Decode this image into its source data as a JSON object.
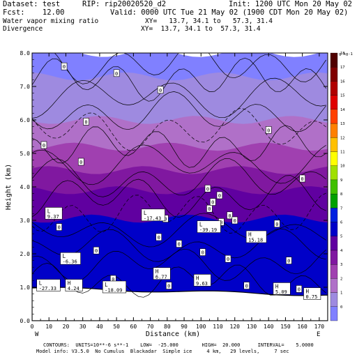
{
  "header": {
    "dataset": "Dataset: test",
    "rip": "RIP: rip20020520_d2",
    "init": "Init: 1200 UTC Mon 20 May 02",
    "fcst": "Fcst:    12.00",
    "valid": "Valid: 0000 UTC Tue 21 May 02 (1900 CDT Mon 20 May 02)",
    "field1": "Water vapor mixing ratio",
    "xy1": "XY=   13.7, 34.1 to   57.3, 31.4",
    "field2": "Divergence",
    "xy2": "XY=  13.7, 34.1 to  57.3, 31.4"
  },
  "footer": {
    "line1": "CONTOURS:  UNITS=10**-6 s**-1    LOW=  -25.000        HIGH=  20.000      INTERVAL=    5.0000",
    "line2": "Model info: V3.5.0  No Cumulus  Blackadar  Simple ice     4 km,   29 levels,     7 sec"
  },
  "chart_data": {
    "type": "heatmap",
    "xlabel": "Distance (km)",
    "ylabel": "Height (km)",
    "xlim": [
      0,
      175
    ],
    "ylim": [
      0,
      8
    ],
    "x_ticks": [
      "0",
      "10",
      "20",
      "30",
      "40",
      "50",
      "60",
      "70",
      "80",
      "90",
      "100",
      "110",
      "120",
      "130",
      "140",
      "150",
      "160",
      "170"
    ],
    "y_ticks": [
      "0.0",
      "1.0",
      "2.0",
      "3.0",
      "4.0",
      "5.0",
      "6.0",
      "7.0",
      "8.0"
    ],
    "end_labels": {
      "left": "W",
      "right": "E"
    },
    "colorbar": {
      "unit": "g kg-1",
      "labels": [
        "0",
        "1",
        "2",
        "3",
        "4",
        "5",
        "6",
        "7",
        "8",
        "9",
        "10",
        "11",
        "12",
        "13",
        "14",
        "15",
        "16",
        "17",
        "18"
      ],
      "colors": [
        "#8080ff",
        "#9e8ae0",
        "#b070c8",
        "#a040b0",
        "#8018a0",
        "#6000a0",
        "#0000c8",
        "#0020e0",
        "#00a000",
        "#40c000",
        "#a0e000",
        "#ffff00",
        "#ffc000",
        "#ff8000",
        "#ff4000",
        "#e00000",
        "#b00000",
        "#800000",
        "#500000"
      ]
    },
    "shading_bands": [
      {
        "color": "#8080ff",
        "y_bottom": 7.3,
        "y_top": 8.0
      },
      {
        "color": "#9e8ae0",
        "y_bottom": 6.0,
        "y_top": 7.3
      },
      {
        "color": "#b070c8",
        "y_bottom": 5.2,
        "y_top": 6.0
      },
      {
        "color": "#a040b0",
        "y_bottom": 4.5,
        "y_top": 5.2
      },
      {
        "color": "#8018a0",
        "y_bottom": 3.9,
        "y_top": 4.5
      },
      {
        "color": "#6000a0",
        "y_bottom": 3.05,
        "y_top": 3.9
      },
      {
        "color": "#0000c8",
        "y_bottom": 0.9,
        "y_top": 3.05
      }
    ],
    "zero_labels": [
      {
        "text": "0",
        "x": 19,
        "y": 7.6
      },
      {
        "text": "0",
        "x": 50,
        "y": 7.4
      },
      {
        "text": "0",
        "x": 76,
        "y": 6.9
      },
      {
        "text": "0",
        "x": 32,
        "y": 5.95
      },
      {
        "text": "0",
        "x": 140,
        "y": 5.7
      },
      {
        "text": "0",
        "x": 7,
        "y": 5.25
      },
      {
        "text": "0",
        "x": 29,
        "y": 4.75
      },
      {
        "text": "0",
        "x": 160,
        "y": 4.25
      },
      {
        "text": "0",
        "x": 104,
        "y": 3.95
      },
      {
        "text": "0",
        "x": 111,
        "y": 3.75
      },
      {
        "text": "0",
        "x": 105,
        "y": 3.35
      },
      {
        "text": "0",
        "x": 112,
        "y": 2.95
      },
      {
        "text": "0",
        "x": 107,
        "y": 3.55
      },
      {
        "text": "0",
        "x": 117,
        "y": 3.15
      },
      {
        "text": "0",
        "x": 79,
        "y": 3.05
      },
      {
        "text": "0",
        "x": 75,
        "y": 2.5
      },
      {
        "text": "0",
        "x": 120,
        "y": 3.0
      },
      {
        "text": "0",
        "x": 145,
        "y": 2.9
      },
      {
        "text": "0",
        "x": 16,
        "y": 2.8
      },
      {
        "text": "0",
        "x": 87,
        "y": 2.3
      },
      {
        "text": "0",
        "x": 101,
        "y": 2.05
      },
      {
        "text": "0",
        "x": 38,
        "y": 2.1
      },
      {
        "text": "0",
        "x": 116,
        "y": 1.85
      },
      {
        "text": "0",
        "x": 152,
        "y": 1.8
      },
      {
        "text": "0",
        "x": 48,
        "y": 1.25
      },
      {
        "text": "0",
        "x": 81,
        "y": 1.05
      },
      {
        "text": "0",
        "x": 127,
        "y": 1.05
      },
      {
        "text": "0",
        "x": 158,
        "y": 0.95
      }
    ],
    "extrema": [
      {
        "kind": "L",
        "value": "9.37",
        "x": 9,
        "y": 3.2
      },
      {
        "kind": "L",
        "value": "-17.43",
        "x": 66,
        "y": 3.15
      },
      {
        "kind": "L",
        "value": "-39.19",
        "x": 99,
        "y": 2.8
      },
      {
        "kind": "H",
        "value": "15.18",
        "x": 128,
        "y": 2.5
      },
      {
        "kind": "L",
        "value": "-6.36",
        "x": 18,
        "y": 1.85
      },
      {
        "kind": "H",
        "value": "6.77",
        "x": 73,
        "y": 1.4
      },
      {
        "kind": "H",
        "value": "9.63",
        "x": 97,
        "y": 1.2
      },
      {
        "kind": "L",
        "value": "-27.33",
        "x": 4,
        "y": 1.05
      },
      {
        "kind": "H",
        "value": "4.24",
        "x": 21,
        "y": 1.05
      },
      {
        "kind": "L",
        "value": "-18.09",
        "x": 43,
        "y": 1.0
      },
      {
        "kind": "H",
        "value": "5.09",
        "x": 144,
        "y": 0.95
      },
      {
        "kind": "H",
        "value": "0.75",
        "x": 162,
        "y": 0.8
      }
    ]
  }
}
